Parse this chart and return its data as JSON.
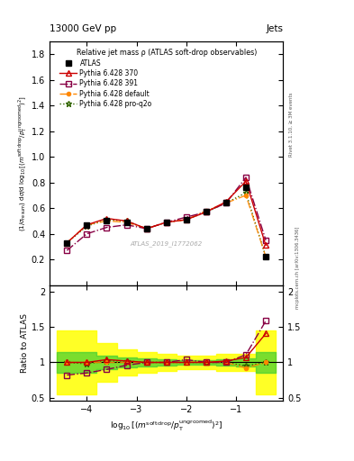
{
  "title_top": "13000 GeV pp",
  "title_right": "Jets",
  "plot_title": "Relative jet mass ρ (ATLAS soft-drop observables)",
  "watermark": "ATLAS_2019_I1772062",
  "right_label": "Rivet 3.1.10, ≥ 3M events",
  "arxiv_label": "mcplots.cern.ch [arXiv:1306.3436]",
  "ylabel_ratio": "Ratio to ATLAS",
  "xlim": [
    -4.75,
    -0.05
  ],
  "ylim_main": [
    0.0,
    1.9
  ],
  "ylim_ratio": [
    0.45,
    2.1
  ],
  "x_data": [
    -4.4,
    -4.0,
    -3.6,
    -3.2,
    -2.8,
    -2.4,
    -2.0,
    -1.6,
    -1.2,
    -0.8,
    -0.4
  ],
  "atlas_y": [
    0.33,
    0.47,
    0.5,
    0.49,
    0.44,
    0.49,
    0.51,
    0.57,
    0.64,
    0.76,
    0.22
  ],
  "p370_y": [
    0.33,
    0.47,
    0.52,
    0.5,
    0.44,
    0.49,
    0.51,
    0.57,
    0.65,
    0.81,
    0.31
  ],
  "p391_y": [
    0.27,
    0.4,
    0.45,
    0.47,
    0.44,
    0.49,
    0.53,
    0.57,
    0.64,
    0.84,
    0.35
  ],
  "pdef_y": [
    0.33,
    0.47,
    0.5,
    0.49,
    0.44,
    0.49,
    0.51,
    0.58,
    0.64,
    0.7,
    0.22
  ],
  "pq2o_y": [
    0.33,
    0.46,
    0.51,
    0.5,
    0.44,
    0.49,
    0.51,
    0.57,
    0.64,
    0.72,
    0.22
  ],
  "ratio_370": [
    1.0,
    1.0,
    1.04,
    1.02,
    1.0,
    1.0,
    1.0,
    1.0,
    1.02,
    1.07,
    1.41
  ],
  "ratio_391": [
    0.82,
    0.85,
    0.9,
    0.96,
    1.0,
    1.0,
    1.04,
    1.0,
    1.0,
    1.11,
    1.59
  ],
  "ratio_def": [
    1.0,
    1.0,
    1.0,
    1.0,
    1.0,
    1.0,
    1.0,
    1.02,
    1.0,
    0.92,
    1.0
  ],
  "ratio_q2o": [
    1.0,
    0.98,
    1.02,
    1.02,
    1.0,
    1.0,
    1.0,
    1.0,
    1.0,
    0.95,
    1.0
  ],
  "yellow_band_x": [
    -4.6,
    -4.2,
    -3.8,
    -3.4,
    -3.0,
    -2.6,
    -2.2,
    -1.8,
    -1.4,
    -1.0,
    -0.6,
    -0.2
  ],
  "yellow_band_lo": [
    0.55,
    0.55,
    0.72,
    0.82,
    0.85,
    0.88,
    0.9,
    0.9,
    0.88,
    0.88,
    0.55,
    0.55
  ],
  "yellow_band_hi": [
    1.45,
    1.45,
    1.28,
    1.18,
    1.15,
    1.12,
    1.1,
    1.1,
    1.12,
    1.12,
    1.45,
    1.45
  ],
  "green_band_x": [
    -4.6,
    -4.2,
    -3.8,
    -3.4,
    -3.0,
    -2.6,
    -2.2,
    -1.8,
    -1.4,
    -1.0,
    -0.6,
    -0.2
  ],
  "green_band_lo": [
    0.85,
    0.85,
    0.9,
    0.93,
    0.94,
    0.96,
    0.97,
    0.97,
    0.96,
    0.94,
    0.85,
    0.85
  ],
  "green_band_hi": [
    1.15,
    1.15,
    1.1,
    1.07,
    1.06,
    1.04,
    1.03,
    1.03,
    1.04,
    1.06,
    1.15,
    1.15
  ],
  "color_370": "#cc0000",
  "color_391": "#880044",
  "color_def": "#ff8800",
  "color_q2o": "#336600",
  "color_atlas": "#000000",
  "yticks_main": [
    0.2,
    0.4,
    0.6,
    0.8,
    1.0,
    1.2,
    1.4,
    1.6,
    1.8
  ],
  "yticks_ratio": [
    0.5,
    1.0,
    1.5,
    2.0
  ],
  "ytick_ratio_labels": [
    "0.5",
    "1",
    "1.5",
    "2"
  ],
  "xticks": [
    -4,
    -3,
    -2,
    -1
  ]
}
